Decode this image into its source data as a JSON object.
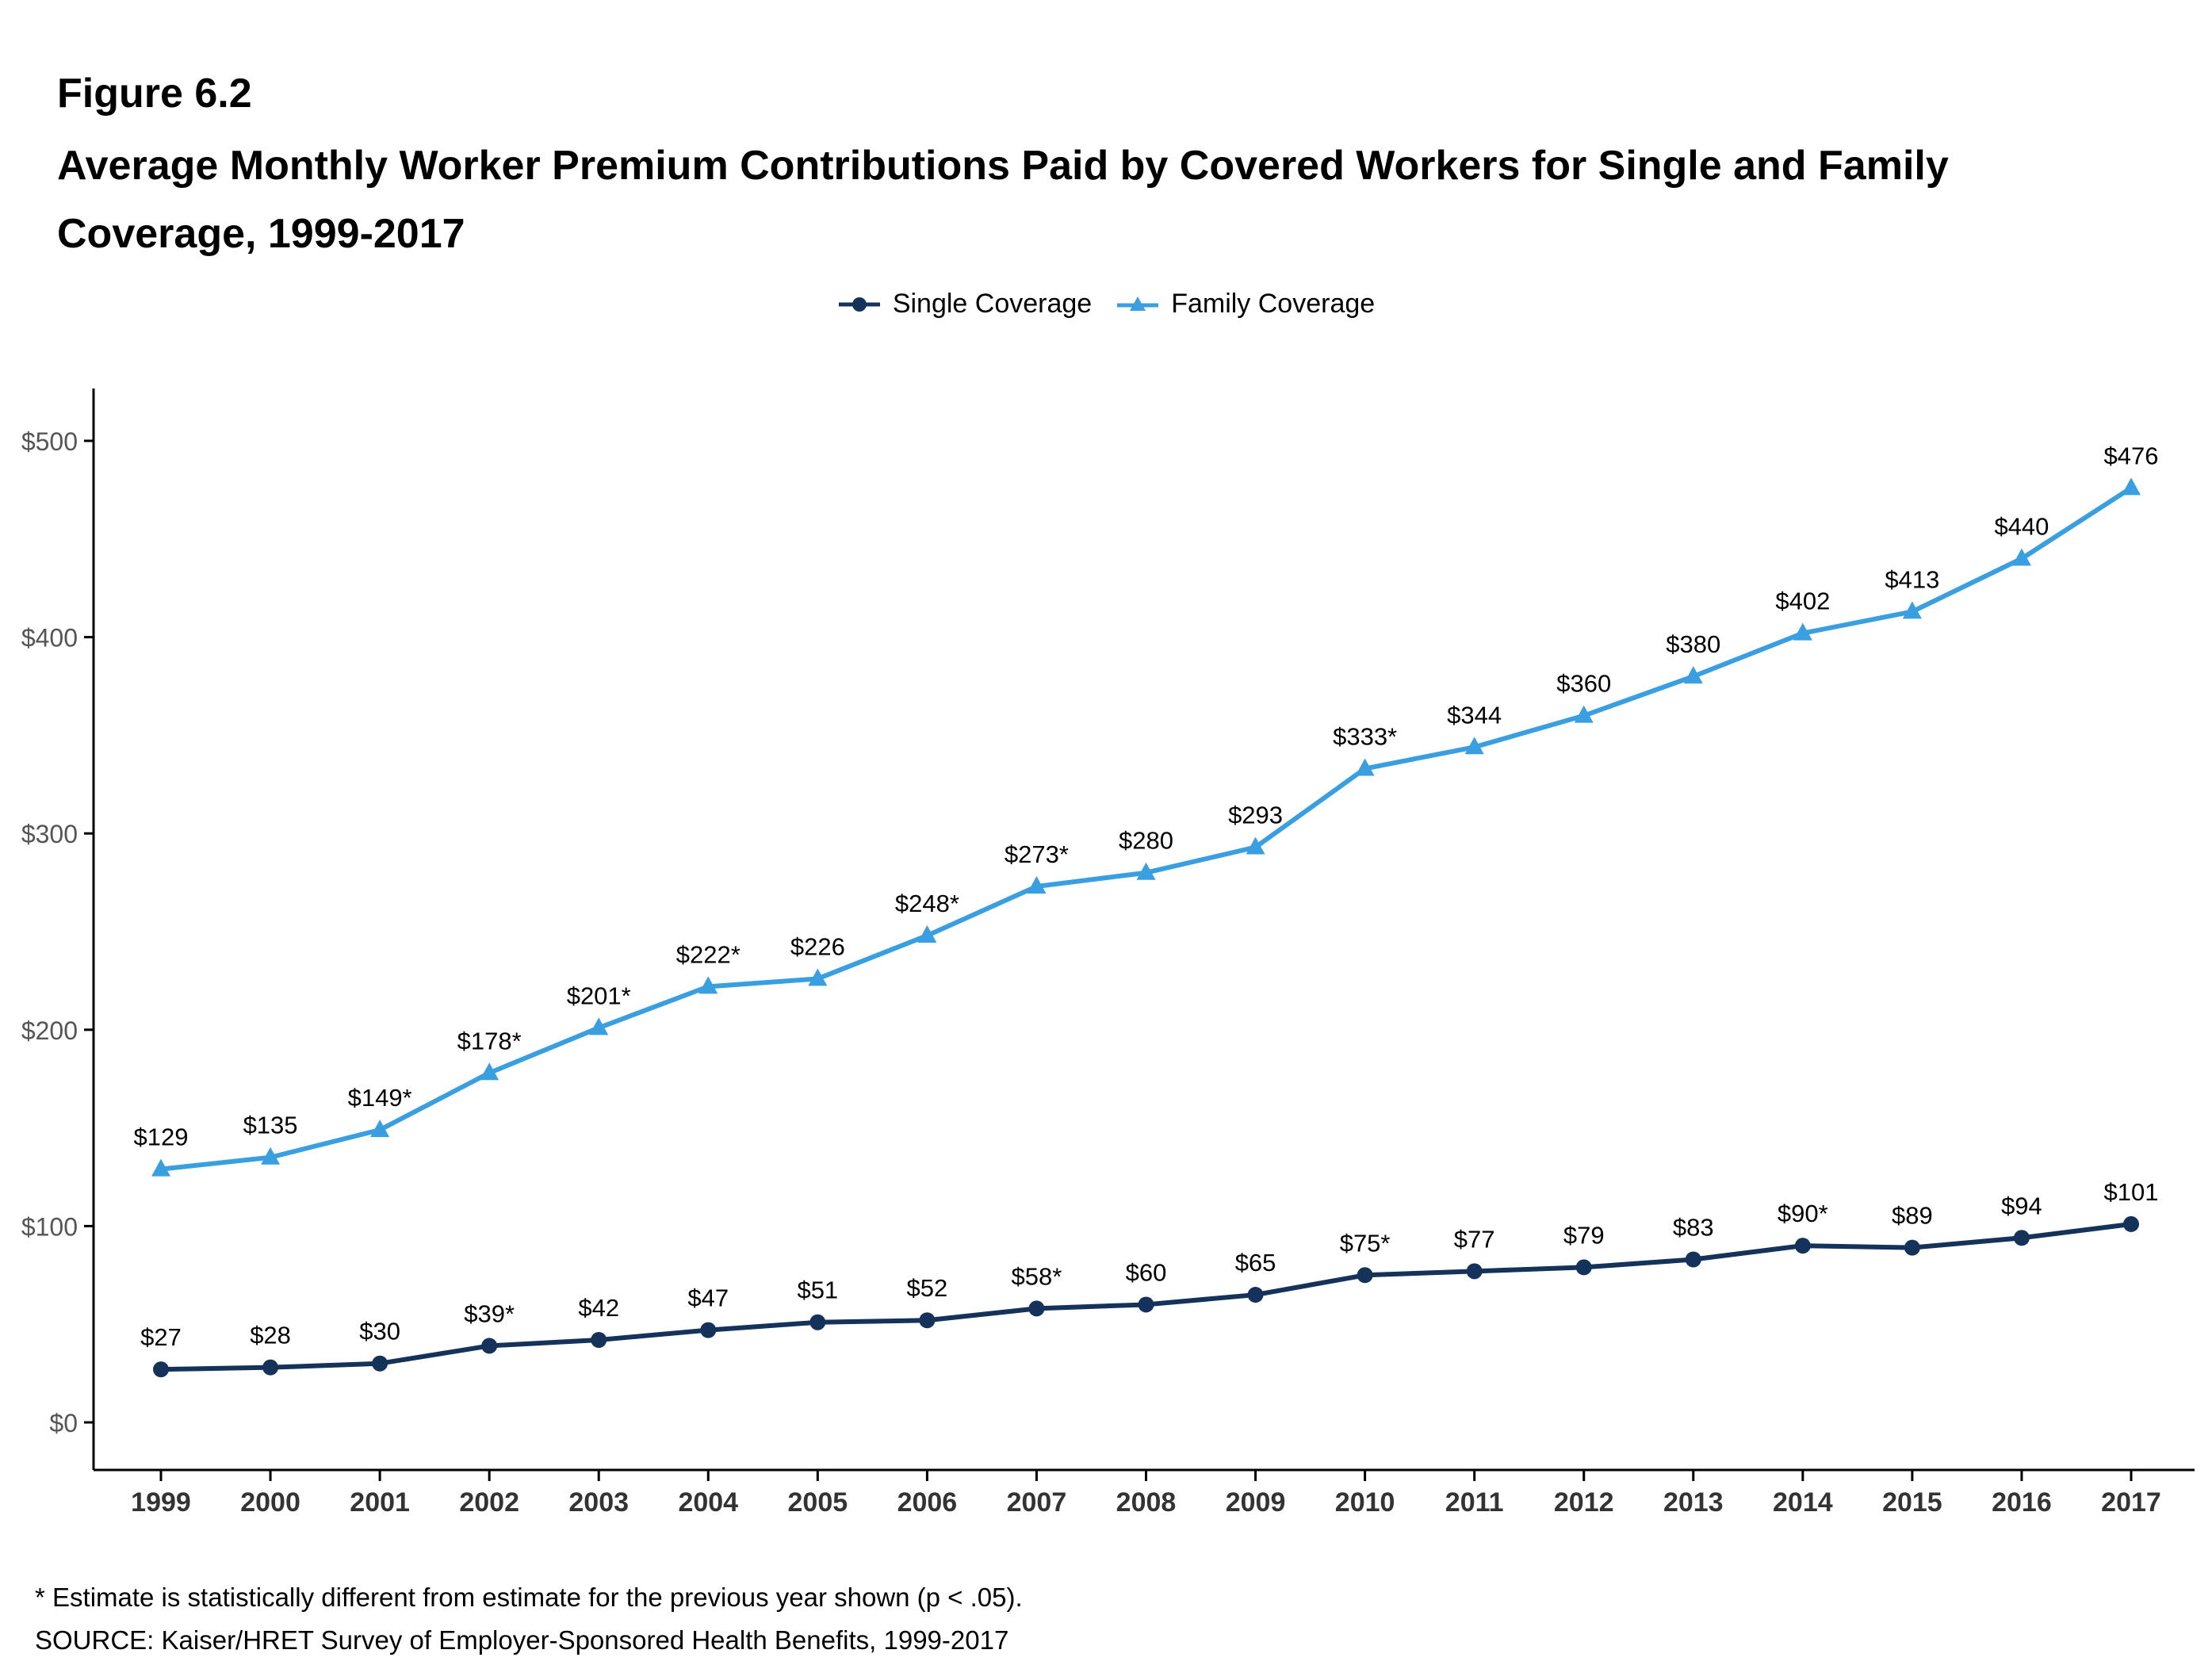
{
  "figure_label": "Figure 6.2",
  "figure_title": "Average Monthly Worker Premium Contributions Paid by Covered Workers for Single and Family Coverage, 1999-2017",
  "footnote": "* Estimate is statistically different from estimate for the previous year shown (p < .05).",
  "source": "SOURCE: Kaiser/HRET Survey of Employer-Sponsored Health Benefits, 1999-2017",
  "chart_data": {
    "type": "line",
    "title": "Average Monthly Worker Premium Contributions Paid by Covered Workers for Single and Family Coverage, 1999-2017",
    "xlabel": "",
    "ylabel": "",
    "ylim": [
      0,
      500
    ],
    "yticks": [
      "$0",
      "$100",
      "$200",
      "$300",
      "$400",
      "$500"
    ],
    "ytick_values": [
      0,
      100,
      200,
      300,
      400,
      500
    ],
    "grid": false,
    "legend_position": "top-center",
    "categories": [
      "1999",
      "2000",
      "2001",
      "2002",
      "2003",
      "2004",
      "2005",
      "2006",
      "2007",
      "2008",
      "2009",
      "2010",
      "2011",
      "2012",
      "2013",
      "2014",
      "2015",
      "2016",
      "2017"
    ],
    "series": [
      {
        "name": "Single Coverage",
        "color": "#14325a",
        "marker": "circle",
        "values": [
          27,
          28,
          30,
          39,
          42,
          47,
          51,
          52,
          58,
          60,
          65,
          75,
          77,
          79,
          83,
          90,
          89,
          94,
          101
        ],
        "labels": [
          "$27",
          "$28",
          "$30",
          "$39*",
          "$42",
          "$47",
          "$51",
          "$52",
          "$58*",
          "$60",
          "$65",
          "$75*",
          "$77",
          "$79",
          "$83",
          "$90*",
          "$89",
          "$94",
          "$101"
        ]
      },
      {
        "name": "Family Coverage",
        "color": "#3a9fe0",
        "marker": "triangle",
        "values": [
          129,
          135,
          149,
          178,
          201,
          222,
          226,
          248,
          273,
          280,
          293,
          333,
          344,
          360,
          380,
          402,
          413,
          440,
          476
        ],
        "labels": [
          "$129",
          "$135",
          "$149*",
          "$178*",
          "$201*",
          "$222*",
          "$226",
          "$248*",
          "$273*",
          "$280",
          "$293",
          "$333*",
          "$344",
          "$360",
          "$380",
          "$402",
          "$413",
          "$440",
          "$476"
        ]
      }
    ]
  }
}
